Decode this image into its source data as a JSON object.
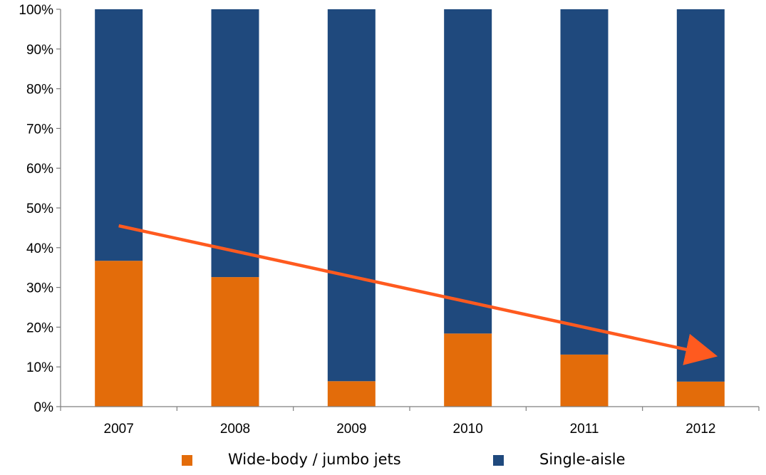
{
  "chart_data": {
    "type": "bar",
    "stacked": true,
    "percent_stacked": true,
    "categories": [
      "2007",
      "2008",
      "2009",
      "2010",
      "2011",
      "2012"
    ],
    "series": [
      {
        "name": "Wide-body / jumbo jets",
        "color": "#E36C0A",
        "values": [
          36.7,
          32.6,
          6.4,
          18.4,
          13.1,
          6.3
        ]
      },
      {
        "name": "Single-aisle",
        "color": "#1F497D",
        "values": [
          63.3,
          67.4,
          93.6,
          81.6,
          86.9,
          93.7
        ]
      }
    ],
    "ylim": [
      0,
      100
    ],
    "yticks": [
      0,
      10,
      20,
      30,
      40,
      50,
      60,
      70,
      80,
      90,
      100
    ],
    "ytick_labels": [
      "0%",
      "10%",
      "20%",
      "30%",
      "40%",
      "50%",
      "60%",
      "70%",
      "80%",
      "90%",
      "100%"
    ],
    "title": "",
    "xlabel": "",
    "ylabel": "",
    "grid": false,
    "legend": {
      "position": "bottom",
      "entries": [
        "Wide-body / jumbo jets",
        "Single-aisle"
      ]
    },
    "annotations": [
      {
        "type": "trend-arrow",
        "color": "#FF5A1F",
        "from": {
          "x": "2007",
          "y": 45.5
        },
        "to": {
          "x": "2012",
          "y": 13.0
        }
      }
    ]
  }
}
